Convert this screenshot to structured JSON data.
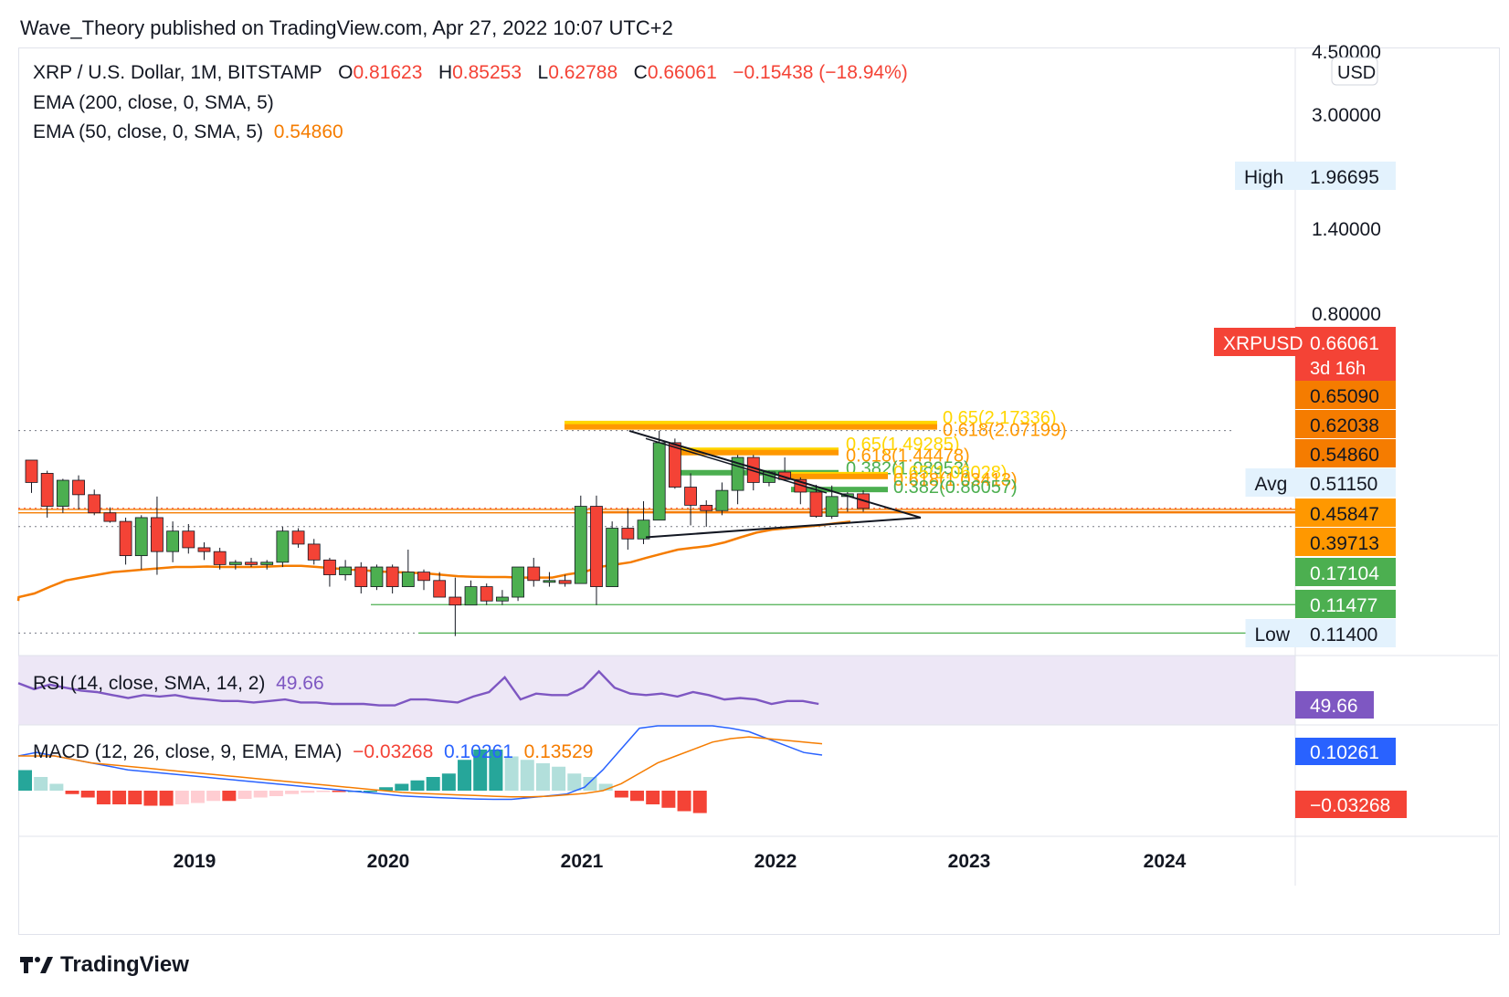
{
  "header": "Wave_Theory published on TradingView.com, Apr 27, 2022 10:07 UTC+2",
  "footer": {
    "brand": "TradingView",
    "logo_icon": "tradingview-logo-icon"
  },
  "legend": {
    "symbol": "XRP / U.S. Dollar, 1M, BITSTAMP",
    "o_label": "O",
    "o_value": "0.81623",
    "h_label": "H",
    "h_value": "0.85253",
    "l_label": "L",
    "l_value": "0.62788",
    "c_label": "C",
    "c_value": "0.66061",
    "change": "−0.15438 (−18.94%)",
    "ema200": "EMA (200, close, 0, SMA, 5)",
    "ema50": "EMA (50, close, 0, SMA, 5)",
    "ema50_value": "0.54860",
    "rsi": "RSI (14, close, SMA, 14, 2)",
    "rsi_value": "49.66",
    "macd": "MACD (12, 26, close, 9, EMA, EMA)",
    "macd_v1": "−0.03268",
    "macd_v2": "0.10261",
    "macd_v3": "0.13529"
  },
  "colors": {
    "up": "#4caf50",
    "down": "#f44336",
    "ema50": "#f57c00",
    "fib_gold": "#ffd600",
    "fib_orange": "#ff9800",
    "fib_green": "#4caf50",
    "rsi": "#7e57c2",
    "macd": "#2962ff",
    "signal": "#f57c00"
  },
  "chart_data": {
    "type": "candlestick",
    "title": "XRP / U.S. Dollar, 1M, BITSTAMP",
    "scale": "log",
    "currency": "USD",
    "x_ticks": [
      "2019",
      "2020",
      "2021",
      "2022",
      "2023",
      "2024"
    ],
    "y_ticks": [
      "4.50000",
      "3.00000",
      "1.40000",
      "0.80000"
    ],
    "candles": [
      {
        "o": 1.3,
        "h": 1.3,
        "l": 0.82,
        "c": 0.95
      },
      {
        "o": 1.08,
        "h": 1.12,
        "l": 0.58,
        "c": 0.68
      },
      {
        "o": 0.68,
        "h": 1.0,
        "l": 0.62,
        "c": 0.98
      },
      {
        "o": 0.98,
        "h": 1.05,
        "l": 0.65,
        "c": 0.8
      },
      {
        "o": 0.8,
        "h": 0.86,
        "l": 0.6,
        "c": 0.62
      },
      {
        "o": 0.62,
        "h": 0.67,
        "l": 0.54,
        "c": 0.55
      },
      {
        "o": 0.55,
        "h": 0.58,
        "l": 0.3,
        "c": 0.34
      },
      {
        "o": 0.34,
        "h": 0.6,
        "l": 0.28,
        "c": 0.58
      },
      {
        "o": 0.58,
        "h": 0.78,
        "l": 0.26,
        "c": 0.36
      },
      {
        "o": 0.36,
        "h": 0.55,
        "l": 0.31,
        "c": 0.48
      },
      {
        "o": 0.48,
        "h": 0.53,
        "l": 0.35,
        "c": 0.38
      },
      {
        "o": 0.38,
        "h": 0.41,
        "l": 0.32,
        "c": 0.36
      },
      {
        "o": 0.36,
        "h": 0.38,
        "l": 0.28,
        "c": 0.3
      },
      {
        "o": 0.3,
        "h": 0.32,
        "l": 0.28,
        "c": 0.31
      },
      {
        "o": 0.31,
        "h": 0.33,
        "l": 0.29,
        "c": 0.3
      },
      {
        "o": 0.3,
        "h": 0.32,
        "l": 0.28,
        "c": 0.31
      },
      {
        "o": 0.31,
        "h": 0.51,
        "l": 0.29,
        "c": 0.48
      },
      {
        "o": 0.48,
        "h": 0.5,
        "l": 0.38,
        "c": 0.4
      },
      {
        "o": 0.4,
        "h": 0.43,
        "l": 0.3,
        "c": 0.32
      },
      {
        "o": 0.32,
        "h": 0.33,
        "l": 0.22,
        "c": 0.26
      },
      {
        "o": 0.26,
        "h": 0.32,
        "l": 0.24,
        "c": 0.29
      },
      {
        "o": 0.29,
        "h": 0.31,
        "l": 0.2,
        "c": 0.22
      },
      {
        "o": 0.22,
        "h": 0.3,
        "l": 0.21,
        "c": 0.29
      },
      {
        "o": 0.29,
        "h": 0.3,
        "l": 0.2,
        "c": 0.22
      },
      {
        "o": 0.22,
        "h": 0.37,
        "l": 0.22,
        "c": 0.27
      },
      {
        "o": 0.27,
        "h": 0.28,
        "l": 0.21,
        "c": 0.24
      },
      {
        "o": 0.24,
        "h": 0.27,
        "l": 0.19,
        "c": 0.19
      },
      {
        "o": 0.19,
        "h": 0.25,
        "l": 0.11,
        "c": 0.17
      },
      {
        "o": 0.17,
        "h": 0.24,
        "l": 0.17,
        "c": 0.22
      },
      {
        "o": 0.22,
        "h": 0.23,
        "l": 0.17,
        "c": 0.18
      },
      {
        "o": 0.18,
        "h": 0.21,
        "l": 0.17,
        "c": 0.19
      },
      {
        "o": 0.19,
        "h": 0.29,
        "l": 0.18,
        "c": 0.29
      },
      {
        "o": 0.29,
        "h": 0.33,
        "l": 0.22,
        "c": 0.24
      },
      {
        "o": 0.24,
        "h": 0.27,
        "l": 0.22,
        "c": 0.24
      },
      {
        "o": 0.24,
        "h": 0.26,
        "l": 0.22,
        "c": 0.23
      },
      {
        "o": 0.23,
        "h": 0.79,
        "l": 0.23,
        "c": 0.68
      },
      {
        "o": 0.68,
        "h": 0.79,
        "l": 0.17,
        "c": 0.22
      },
      {
        "o": 0.22,
        "h": 0.55,
        "l": 0.22,
        "c": 0.5
      },
      {
        "o": 0.5,
        "h": 0.66,
        "l": 0.37,
        "c": 0.43
      },
      {
        "o": 0.43,
        "h": 0.73,
        "l": 0.4,
        "c": 0.56
      },
      {
        "o": 0.56,
        "h": 1.96,
        "l": 0.56,
        "c": 1.66
      },
      {
        "o": 1.66,
        "h": 1.76,
        "l": 0.87,
        "c": 0.89
      },
      {
        "o": 0.89,
        "h": 1.08,
        "l": 0.52,
        "c": 0.69
      },
      {
        "o": 0.69,
        "h": 0.74,
        "l": 0.51,
        "c": 0.64
      },
      {
        "o": 0.64,
        "h": 0.95,
        "l": 0.6,
        "c": 0.85
      },
      {
        "o": 0.85,
        "h": 1.4,
        "l": 0.7,
        "c": 1.35
      },
      {
        "o": 1.35,
        "h": 1.4,
        "l": 0.85,
        "c": 0.95
      },
      {
        "o": 0.95,
        "h": 1.12,
        "l": 0.9,
        "c": 1.1
      },
      {
        "o": 1.1,
        "h": 1.35,
        "l": 0.99,
        "c": 0.99
      },
      {
        "o": 0.99,
        "h": 1.02,
        "l": 0.7,
        "c": 0.83
      },
      {
        "o": 0.83,
        "h": 0.92,
        "l": 0.58,
        "c": 0.59
      },
      {
        "o": 0.59,
        "h": 0.91,
        "l": 0.57,
        "c": 0.78
      },
      {
        "o": 0.78,
        "h": 0.83,
        "l": 0.63,
        "c": 0.81
      },
      {
        "o": 0.81,
        "h": 0.85,
        "l": 0.63,
        "c": 0.66
      }
    ],
    "ema50": [
      0.19,
      0.2,
      0.22,
      0.24,
      0.25,
      0.26,
      0.27,
      0.275,
      0.28,
      0.285,
      0.29,
      0.29,
      0.292,
      0.29,
      0.29,
      0.29,
      0.292,
      0.295,
      0.295,
      0.29,
      0.285,
      0.28,
      0.277,
      0.272,
      0.27,
      0.268,
      0.265,
      0.26,
      0.255,
      0.253,
      0.252,
      0.252,
      0.25,
      0.25,
      0.25,
      0.262,
      0.27,
      0.29,
      0.3,
      0.31,
      0.33,
      0.35,
      0.37,
      0.38,
      0.39,
      0.41,
      0.44,
      0.47,
      0.49,
      0.5,
      0.51,
      0.52,
      0.535,
      0.5486
    ],
    "price_labels": [
      {
        "text": "High",
        "value": "1.96695"
      },
      {
        "text": "XRPUSD",
        "value": "0.66061",
        "sub": "3d 16h"
      },
      {
        "text": "",
        "value": "0.65090"
      },
      {
        "text": "",
        "value": "0.62038"
      },
      {
        "text": "",
        "value": "0.54860"
      },
      {
        "text": "Avg",
        "value": "0.51150"
      },
      {
        "text": "",
        "value": "0.45847"
      },
      {
        "text": "",
        "value": "0.39713"
      },
      {
        "text": "",
        "value": "0.17104"
      },
      {
        "text": "",
        "value": "0.11477"
      },
      {
        "text": "Low",
        "value": "0.11400"
      }
    ],
    "fib_labels": [
      {
        "text": "0.65(2.17336)",
        "price": 2.17336
      },
      {
        "text": "0.618(2.07199)",
        "price": 2.07199
      },
      {
        "text": "0.65(1.49285)",
        "price": 1.49285
      },
      {
        "text": "0.618(1.44478)",
        "price": 1.44478
      },
      {
        "text": "0.382(1.08953)",
        "price": 1.08953
      },
      {
        "text": "0.65(1.06028)",
        "price": 1.06028
      },
      {
        "text": "0.618(1.03413)",
        "price": 1.03413
      },
      {
        "text": "0.382(0.86057)",
        "price": 0.86057
      }
    ],
    "rsi": [
      58,
      54,
      57,
      55,
      53,
      52,
      50,
      48,
      50,
      49,
      50,
      48,
      47,
      46,
      46,
      45,
      46,
      47,
      45,
      45,
      44,
      44,
      44,
      43,
      43,
      47,
      47,
      46,
      45,
      49,
      52,
      62,
      47,
      51,
      50,
      50,
      55,
      66,
      55,
      51,
      50,
      51,
      49,
      52,
      50,
      47,
      48,
      47,
      44,
      46,
      46,
      44
    ],
    "macd_line": [
      0.1,
      0.11,
      0.1,
      0.09,
      0.08,
      0.07,
      0.06,
      0.055,
      0.05,
      0.045,
      0.04,
      0.035,
      0.03,
      0.025,
      0.02,
      0.015,
      0.01,
      0.005,
      0.0,
      -0.005,
      -0.01,
      -0.015,
      -0.018,
      -0.02,
      -0.022,
      -0.024,
      -0.025,
      -0.025,
      -0.02,
      -0.015,
      -0.01,
      0.01,
      0.06,
      0.12,
      0.18,
      0.2,
      0.19,
      0.21,
      0.2,
      0.18,
      0.17,
      0.15,
      0.13,
      0.11,
      0.1026
    ],
    "signal_line": [
      0.1,
      0.1,
      0.1,
      0.09,
      0.08,
      0.075,
      0.07,
      0.065,
      0.06,
      0.055,
      0.05,
      0.045,
      0.04,
      0.035,
      0.03,
      0.025,
      0.02,
      0.015,
      0.01,
      0.005,
      0.0,
      -0.005,
      -0.008,
      -0.01,
      -0.012,
      -0.014,
      -0.016,
      -0.018,
      -0.018,
      -0.016,
      -0.012,
      -0.008,
      0.0,
      0.02,
      0.05,
      0.08,
      0.1,
      0.12,
      0.14,
      0.15,
      0.155,
      0.15,
      0.145,
      0.14,
      0.1353
    ],
    "macd_hist": [
      0.03,
      0.02,
      0.01,
      -0.005,
      -0.01,
      -0.02,
      -0.02,
      -0.02,
      -0.022,
      -0.022,
      -0.02,
      -0.018,
      -0.015,
      -0.015,
      -0.012,
      -0.01,
      -0.008,
      -0.005,
      -0.003,
      -0.002,
      -0.002,
      0.0,
      0.0,
      0.005,
      0.01,
      0.015,
      0.02,
      0.025,
      0.045,
      0.06,
      0.06,
      0.05,
      0.045,
      0.04,
      0.035,
      0.025,
      0.02,
      0.01,
      -0.01,
      -0.015,
      -0.02,
      -0.025,
      -0.03,
      -0.0327
    ]
  }
}
